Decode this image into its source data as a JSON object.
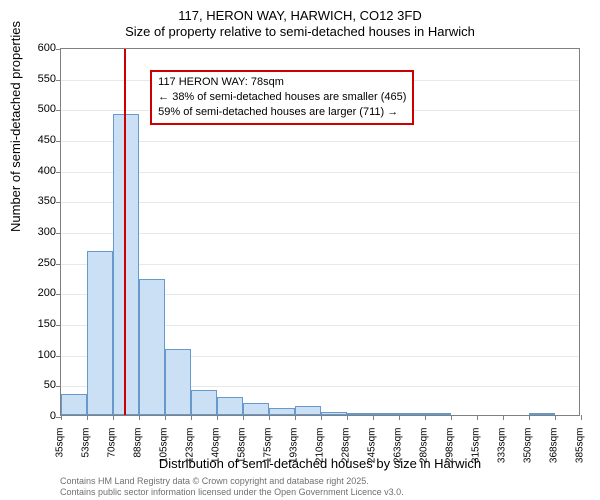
{
  "chart": {
    "type": "histogram",
    "title_main": "117, HERON WAY, HARWICH, CO12 3FD",
    "title_sub": "Size of property relative to semi-detached houses in Harwich",
    "title_fontsize": 13,
    "xlabel": "Distribution of semi-detached houses by size in Harwich",
    "ylabel": "Number of semi-detached properties",
    "label_fontsize": 13,
    "background_color": "#ffffff",
    "grid_color": "#e8e8e8",
    "axis_color": "#808080",
    "bar_fill_color": "#cce0f5",
    "bar_border_color": "#6699cc",
    "marker_color": "#cc0000",
    "ylim": [
      0,
      600
    ],
    "ytick_step": 50,
    "xlim": [
      35,
      385
    ],
    "xtick_step": 17.5,
    "xtick_labels": [
      "35sqm",
      "53sqm",
      "70sqm",
      "88sqm",
      "105sqm",
      "123sqm",
      "140sqm",
      "158sqm",
      "175sqm",
      "193sqm",
      "210sqm",
      "228sqm",
      "245sqm",
      "263sqm",
      "280sqm",
      "298sqm",
      "315sqm",
      "333sqm",
      "350sqm",
      "368sqm",
      "385sqm"
    ],
    "bar_width_sqm": 17.5,
    "bars": [
      {
        "x_start": 35,
        "value": 35
      },
      {
        "x_start": 52.5,
        "value": 268
      },
      {
        "x_start": 70,
        "value": 490
      },
      {
        "x_start": 87.5,
        "value": 222
      },
      {
        "x_start": 105,
        "value": 108
      },
      {
        "x_start": 122.5,
        "value": 40
      },
      {
        "x_start": 140,
        "value": 30
      },
      {
        "x_start": 157.5,
        "value": 20
      },
      {
        "x_start": 175,
        "value": 12
      },
      {
        "x_start": 192.5,
        "value": 15
      },
      {
        "x_start": 210,
        "value": 5
      },
      {
        "x_start": 227.5,
        "value": 3
      },
      {
        "x_start": 245,
        "value": 2
      },
      {
        "x_start": 262.5,
        "value": 2
      },
      {
        "x_start": 280,
        "value": 1
      },
      {
        "x_start": 297.5,
        "value": 0
      },
      {
        "x_start": 315,
        "value": 0
      },
      {
        "x_start": 332.5,
        "value": 0
      },
      {
        "x_start": 350,
        "value": 3
      },
      {
        "x_start": 367.5,
        "value": 0
      }
    ],
    "marker_value": 78,
    "legend": {
      "line1": "117 HERON WAY: 78sqm",
      "line2": "← 38% of semi-detached houses are smaller (465)",
      "line3": "59% of semi-detached houses are larger (711) →",
      "border_color": "#cc0000",
      "fontsize": 11,
      "x_sqm": 95,
      "y_value": 565
    }
  },
  "footer": {
    "line1": "Contains HM Land Registry data © Crown copyright and database right 2025.",
    "line2": "Contains public sector information licensed under the Open Government Licence v3.0.",
    "color": "#707070",
    "fontsize": 9
  }
}
